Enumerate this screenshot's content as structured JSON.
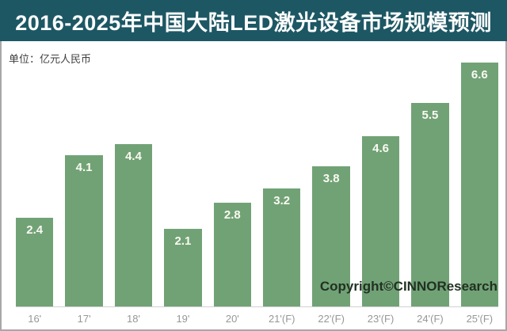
{
  "header": {
    "title": "2016-2025年中国大陆LED激光设备市场规模预测"
  },
  "chart": {
    "unit_label": "单位：亿元人民币",
    "copyright": "Copyright©CINNOResearch"
  },
  "chart_data": {
    "type": "bar",
    "title": "2016-2025年中国大陆LED激光设备市场规模预测",
    "unit": "亿元人民币",
    "categories": [
      "16'",
      "17'",
      "18'",
      "19'",
      "20'",
      "21'(F)",
      "22'(F)",
      "23'(F)",
      "24'(F)",
      "25'(F)"
    ],
    "values": [
      2.4,
      4.1,
      4.4,
      2.1,
      2.8,
      3.2,
      3.8,
      4.6,
      5.5,
      6.6
    ],
    "ylim": [
      0,
      6.6
    ],
    "grid": false,
    "legend": false,
    "value_labels_shown": true,
    "bar_color": "#71a276",
    "value_label_color": "#fafaf2",
    "axis_label_color": "#979797",
    "title_bg_color": "#1d5764",
    "title_text_color": "#fdfdfd"
  }
}
